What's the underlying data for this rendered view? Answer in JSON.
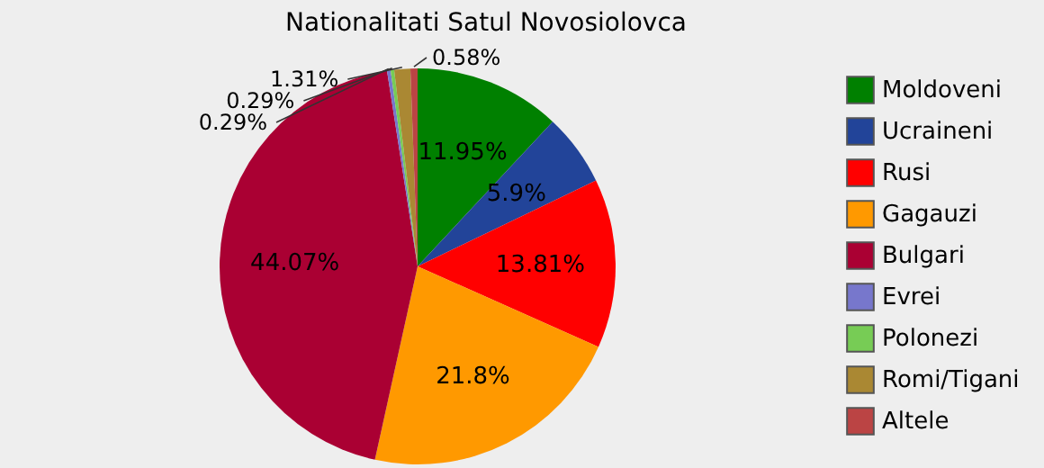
{
  "chart_data": {
    "type": "pie",
    "title": "Nationalitati Satul Novosiolovca",
    "categories": [
      "Moldoveni",
      "Ucraineni",
      "Rusi",
      "Gagauzi",
      "Bulgari",
      "Evrei",
      "Polonezi",
      "Romi/Tigani",
      "Altele"
    ],
    "values": [
      11.95,
      5.9,
      13.81,
      21.8,
      44.07,
      0.29,
      0.29,
      1.31,
      0.58
    ],
    "colors": [
      "#008000",
      "#224499",
      "#ff0000",
      "#ff9900",
      "#aa0033",
      "#7777cc",
      "#77cc55",
      "#aa8833",
      "#bb4444"
    ],
    "value_labels": [
      "11.95%",
      "5.9%",
      "13.81%",
      "21.8%",
      "44.07%",
      "0.29%",
      "0.29%",
      "1.31%",
      "0.58%"
    ],
    "legend": "right"
  }
}
